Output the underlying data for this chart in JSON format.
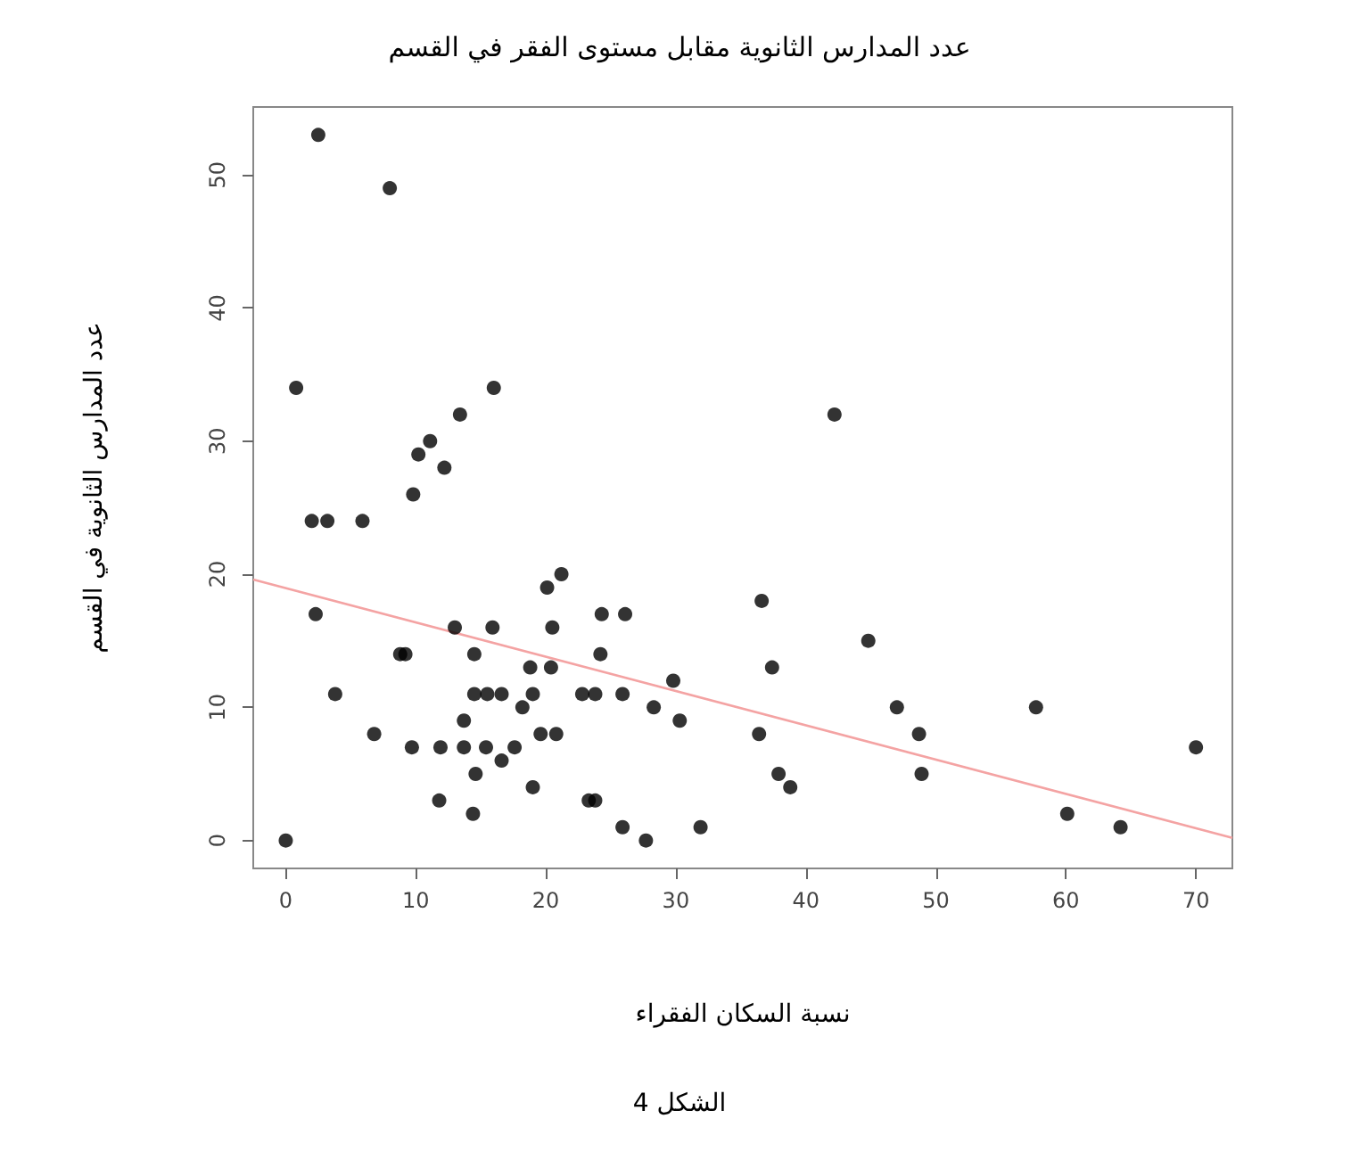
{
  "chart_data": {
    "type": "scatter",
    "title": "عدد المدارس الثانوية مقابل مستوى الفقر في القسم",
    "xlabel": "نسبة السكان الفقراء",
    "ylabel": "عدد المدارس الثانوية في القسم",
    "annotations": [
      "الشكل 4"
    ],
    "xlim": [
      -2.5,
      72.8
    ],
    "ylim": [
      -2.1,
      55.1
    ],
    "xticks": [
      0,
      10,
      20,
      30,
      40,
      50,
      60,
      70
    ],
    "yticks": [
      0,
      10,
      20,
      30,
      40,
      50
    ],
    "grid": false,
    "marker": "circle",
    "series": [
      {
        "type": "scatter",
        "color": "#000000",
        "x": [
          2.5,
          8.0,
          0.8,
          16.0,
          13.4,
          11.1,
          10.2,
          12.2,
          9.8,
          2.0,
          3.2,
          5.9,
          2.3,
          21.2,
          20.1,
          13.0,
          15.9,
          20.5,
          24.3,
          8.8,
          9.2,
          14.5,
          24.2,
          18.8,
          20.4,
          3.8,
          14.5,
          15.5,
          16.6,
          19.0,
          22.8,
          23.8,
          18.2,
          13.7,
          6.8,
          19.6,
          20.8,
          9.7,
          11.9,
          13.7,
          15.4,
          17.6,
          16.6,
          14.6,
          19.0,
          11.8,
          23.3,
          23.8,
          14.4,
          0,
          26.1,
          25.9,
          29.8,
          28.3,
          30.3,
          25.9,
          27.7,
          31.9,
          36.6,
          37.4,
          36.4,
          37.9,
          38.8,
          42.2,
          44.8,
          47.0,
          48.7,
          48.9,
          57.7,
          60.1,
          64.2,
          70.0
        ],
        "values": [
          53,
          49,
          34,
          34,
          32,
          30,
          29,
          28,
          26,
          24,
          24,
          24,
          17,
          20,
          19,
          16,
          16,
          16,
          17,
          14,
          14,
          14,
          14,
          13,
          13,
          11,
          11,
          11,
          11,
          11,
          11,
          11,
          10,
          9,
          8,
          8,
          8,
          7,
          7,
          7,
          7,
          7,
          6,
          5,
          4,
          3,
          3,
          3,
          2,
          0,
          17,
          11,
          12,
          10,
          9,
          1,
          0,
          1,
          18,
          13,
          8,
          5,
          4,
          32,
          15,
          10,
          8,
          5,
          10,
          2,
          1,
          7
        ]
      },
      {
        "type": "line",
        "color": "#f4a3a3",
        "x": [
          -2.5,
          72.8
        ],
        "values": [
          19.6,
          0.2
        ],
        "marker": "none"
      }
    ]
  }
}
